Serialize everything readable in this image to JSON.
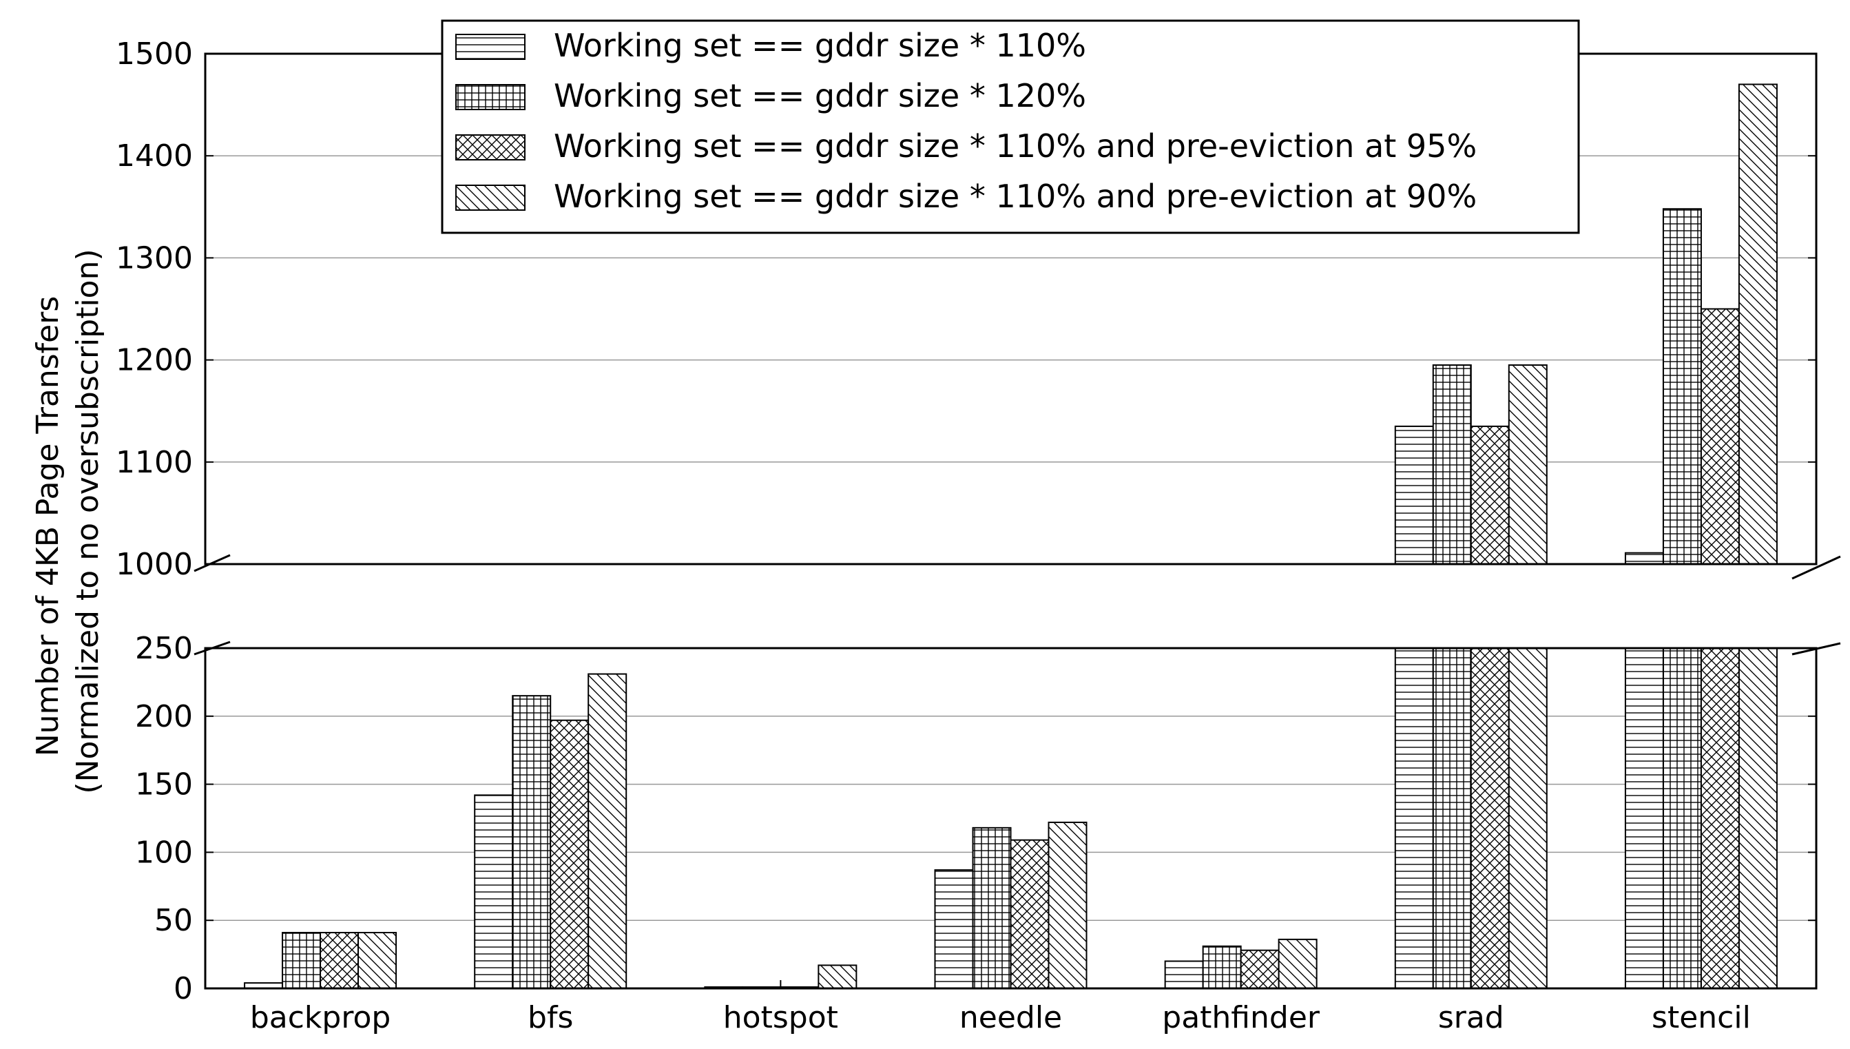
{
  "chart_data": {
    "type": "bar",
    "broken_axis": true,
    "ylabel": [
      "Number of 4KB Page Transfers",
      "(Normalized to no oversubscription)"
    ],
    "categories": [
      "backprop",
      "bfs",
      "hotspot",
      "needle",
      "pathfinder",
      "srad",
      "stencil"
    ],
    "series": [
      {
        "name": "Working set == gddr size * 110%",
        "hatch": "horizontal",
        "values": [
          4,
          142,
          1,
          87,
          20,
          1135,
          1011
        ]
      },
      {
        "name": "Working set == gddr size * 120%",
        "hatch": "grid",
        "values": [
          41,
          215,
          1,
          118,
          31,
          1195,
          1348
        ]
      },
      {
        "name": "Working set == gddr size * 110% and pre-eviction at 95%",
        "hatch": "crosshatch",
        "values": [
          41,
          197,
          1,
          109,
          28,
          1135,
          1250
        ]
      },
      {
        "name": "Working set == gddr size * 110% and pre-eviction at 90%",
        "hatch": "diagonal",
        "values": [
          41,
          231,
          17,
          122,
          36,
          1195,
          1470
        ]
      }
    ],
    "upper_panel": {
      "ylim": [
        1000,
        1500
      ],
      "ticks": [
        "1000",
        "1100",
        "1200",
        "1300",
        "1400",
        "1500"
      ]
    },
    "lower_panel": {
      "ylim": [
        0,
        250
      ],
      "ticks": [
        "0",
        "50",
        "100",
        "150",
        "200",
        "250"
      ]
    },
    "grid": true,
    "legend_position": "top-center",
    "colors": {
      "bar_fill": "#ffffff",
      "bar_edge": "#000000",
      "grid": "#999999"
    }
  }
}
